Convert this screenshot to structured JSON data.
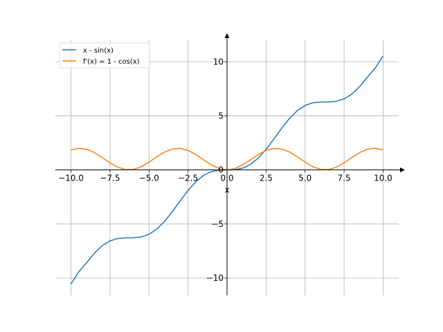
{
  "chart_data": {
    "type": "line",
    "xlabel": "x",
    "ylabel": "",
    "xlim": [
      -11,
      11
    ],
    "ylim": [
      -11.6,
      12
    ],
    "grid": true,
    "legend_position": "top-left",
    "x_ticks": [
      -10,
      -7.5,
      -5,
      -2.5,
      0,
      2.5,
      5,
      7.5,
      10
    ],
    "x_tick_labels": [
      "−10.0",
      "−7.5",
      "−5.0",
      "−2.5",
      "0.0",
      "2.5",
      "5.0",
      "7.5",
      "10.0"
    ],
    "y_ticks": [
      -10,
      -5,
      0,
      5,
      10
    ],
    "y_tick_labels": [
      "−10",
      "−5",
      "0",
      "5",
      "10"
    ],
    "x": [
      -10,
      -9.5,
      -9,
      -8.5,
      -8,
      -7.5,
      -7,
      -6.5,
      -6,
      -5.5,
      -5,
      -4.5,
      -4,
      -3.5,
      -3,
      -2.5,
      -2,
      -1.5,
      -1,
      -0.5,
      0,
      0.5,
      1,
      1.5,
      2,
      2.5,
      3,
      3.5,
      4,
      4.5,
      5,
      5.5,
      6,
      6.5,
      7,
      7.5,
      8,
      8.5,
      9,
      9.5,
      10
    ],
    "series": [
      {
        "name": "x - sin(x)",
        "color": "#1f77b4",
        "values": [
          -10.544,
          -9.425,
          -8.588,
          -7.702,
          -7.011,
          -6.562,
          -6.343,
          -6.285,
          -6.279,
          -6.205,
          -5.959,
          -5.477,
          -4.757,
          -3.849,
          -2.859,
          -1.902,
          -1.091,
          -0.503,
          -0.159,
          -0.021,
          0,
          0.021,
          0.159,
          0.503,
          1.091,
          1.902,
          2.859,
          3.849,
          4.757,
          5.477,
          5.959,
          6.205,
          6.279,
          6.285,
          6.343,
          6.562,
          7.011,
          7.702,
          8.588,
          9.425,
          10.544
        ]
      },
      {
        "name": "f'(x) = 1 - cos(x)",
        "color": "#ff7f0e",
        "values": [
          1.839,
          1.997,
          1.911,
          1.602,
          1.146,
          0.653,
          0.246,
          0.023,
          0.04,
          0.291,
          0.716,
          1.211,
          1.654,
          1.936,
          1.99,
          1.801,
          1.416,
          0.929,
          0.46,
          0.122,
          0,
          0.122,
          0.46,
          0.929,
          1.416,
          1.801,
          1.99,
          1.936,
          1.654,
          1.211,
          0.716,
          0.291,
          0.04,
          0.023,
          0.246,
          0.653,
          1.146,
          1.602,
          1.911,
          1.997,
          1.839
        ]
      }
    ]
  }
}
